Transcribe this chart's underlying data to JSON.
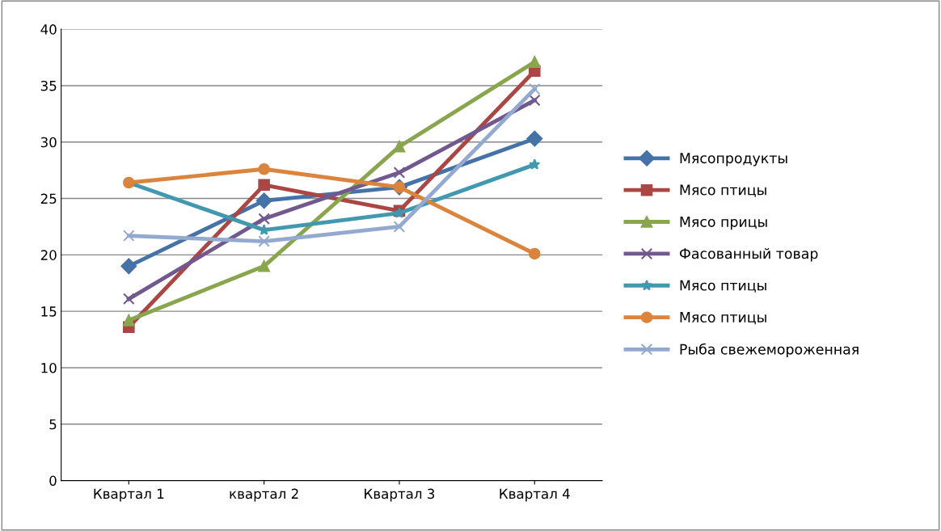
{
  "chart_data": {
    "type": "line",
    "categories": [
      "Квартал 1",
      "квартал 2",
      "Квартал 3",
      "Квартал 4"
    ],
    "series": [
      {
        "name": "Мясопродукты",
        "color": "#4572a7",
        "marker": "diamond",
        "values": [
          19.0,
          24.8,
          26.0,
          30.3
        ]
      },
      {
        "name": "Мясо птицы",
        "color": "#aa4643",
        "marker": "square",
        "values": [
          13.6,
          26.2,
          23.9,
          36.3
        ]
      },
      {
        "name": "Мясо прицы",
        "color": "#89a54e",
        "marker": "triangle",
        "values": [
          14.2,
          19.0,
          29.6,
          37.1
        ]
      },
      {
        "name": "Фасованный товар",
        "color": "#71588f",
        "marker": "cross",
        "values": [
          16.1,
          23.2,
          27.3,
          33.7
        ]
      },
      {
        "name": "Мясо птицы",
        "color": "#4198af",
        "marker": "star",
        "values": [
          26.4,
          22.2,
          23.7,
          28.0
        ]
      },
      {
        "name": "Мясо птицы",
        "color": "#db843d",
        "marker": "circle",
        "values": [
          26.4,
          27.6,
          26.0,
          20.1
        ]
      },
      {
        "name": "Рыба свежемороженная",
        "color": "#93a9cf",
        "marker": "cross",
        "values": [
          21.7,
          21.2,
          22.5,
          34.7
        ]
      }
    ],
    "ylim": [
      0,
      40
    ],
    "yticks": [
      0,
      5,
      10,
      15,
      20,
      25,
      30,
      35,
      40
    ],
    "grid": "y",
    "legend": "right",
    "line_style": "solid"
  }
}
